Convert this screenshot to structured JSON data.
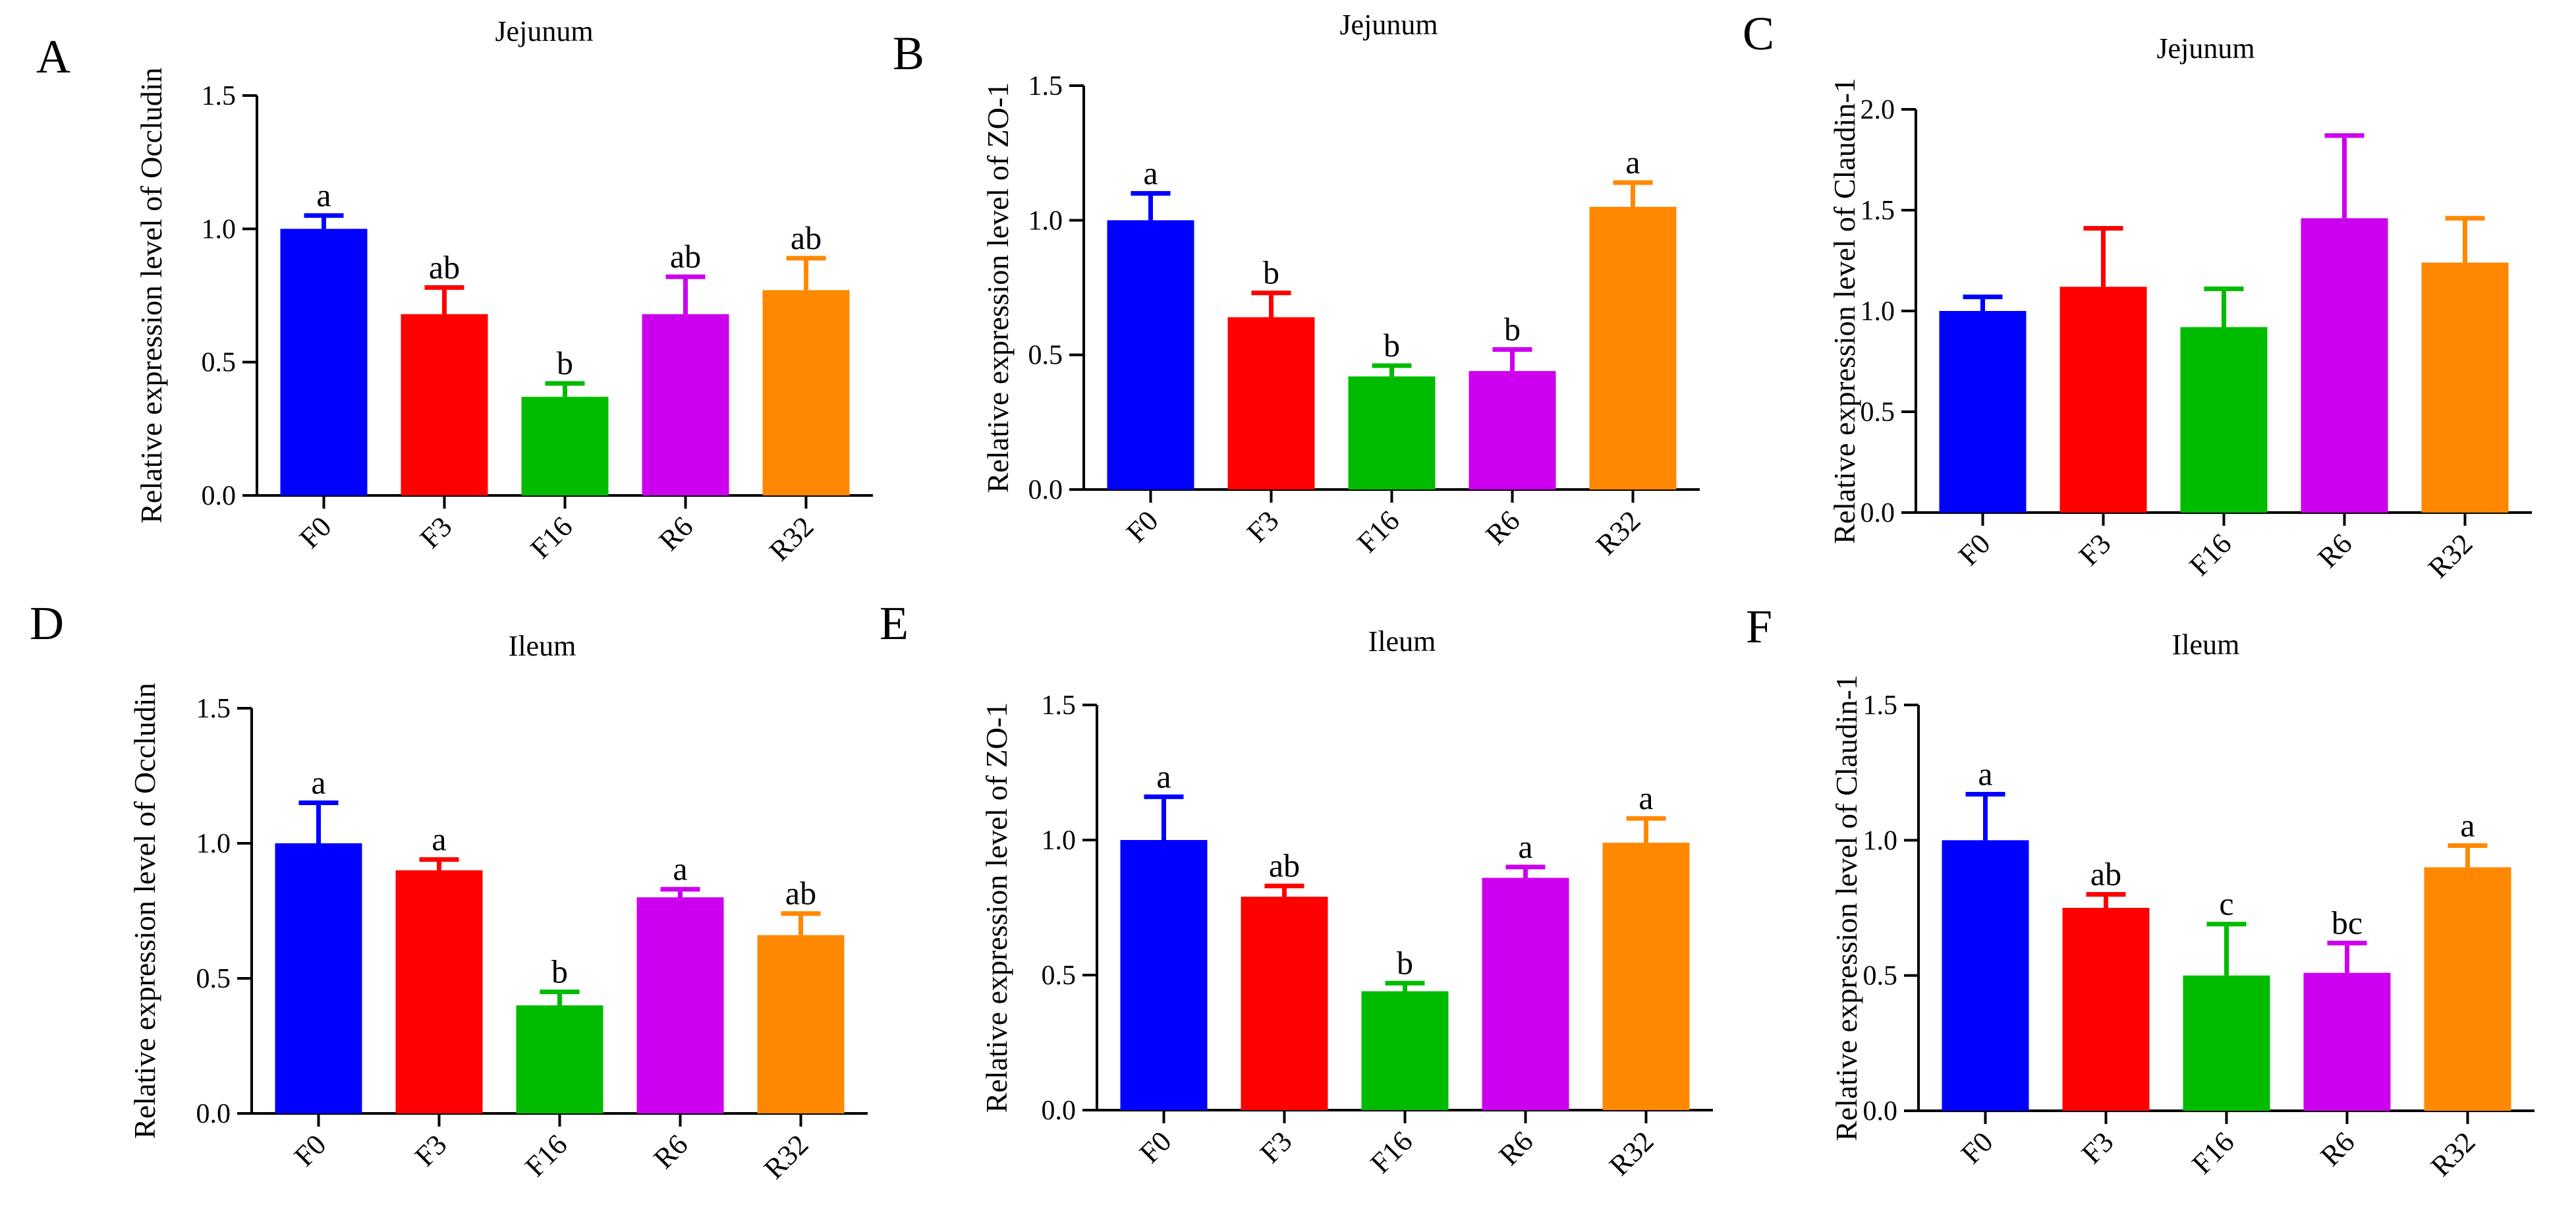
{
  "palette": [
    "#0000ff",
    "#ff0000",
    "#00bb00",
    "#cc00ee",
    "#ff8800"
  ],
  "chart_data": [
    {
      "panel": "A",
      "type": "bar",
      "title": "Jejunum",
      "xlabel": "",
      "ylabel": "Relative expression  level of Occludin",
      "categories": [
        "F0",
        "F3",
        "F16",
        "R6",
        "R32"
      ],
      "values": [
        1.0,
        0.68,
        0.37,
        0.68,
        0.77
      ],
      "errors": [
        0.05,
        0.1,
        0.05,
        0.14,
        0.12
      ],
      "significance": [
        "a",
        "ab",
        "b",
        "ab",
        "ab"
      ],
      "ylim": [
        0,
        1.5
      ],
      "yticks": [
        0.0,
        0.5,
        1.0,
        1.5
      ],
      "ytick_labels": [
        "0.0",
        "0.5",
        "1.0",
        "1.5"
      ]
    },
    {
      "panel": "B",
      "type": "bar",
      "title": "Jejunum",
      "xlabel": "",
      "ylabel": "Relative expression  level of ZO-1",
      "categories": [
        "F0",
        "F3",
        "F16",
        "R6",
        "R32"
      ],
      "values": [
        1.0,
        0.64,
        0.42,
        0.44,
        1.05
      ],
      "errors": [
        0.1,
        0.09,
        0.04,
        0.08,
        0.09
      ],
      "significance": [
        "a",
        "b",
        "b",
        "b",
        "a"
      ],
      "ylim": [
        0,
        1.5
      ],
      "yticks": [
        0.0,
        0.5,
        1.0,
        1.5
      ],
      "ytick_labels": [
        "0.0",
        "0.5",
        "1.0",
        "1.5"
      ]
    },
    {
      "panel": "C",
      "type": "bar",
      "title": "Jejunum",
      "xlabel": "",
      "ylabel": "Relative expression  level of Claudin-1",
      "categories": [
        "F0",
        "F3",
        "F16",
        "R6",
        "R32"
      ],
      "values": [
        1.0,
        1.12,
        0.92,
        1.46,
        1.24
      ],
      "errors": [
        0.07,
        0.29,
        0.19,
        0.41,
        0.22
      ],
      "significance": [
        "",
        "",
        "",
        "",
        ""
      ],
      "ylim": [
        0,
        2.0
      ],
      "yticks": [
        0.0,
        0.5,
        1.0,
        1.5,
        2.0
      ],
      "ytick_labels": [
        "0.0",
        "0.5",
        "1.0",
        "1.5",
        "2.0"
      ]
    },
    {
      "panel": "D",
      "type": "bar",
      "title": "Ileum",
      "xlabel": "",
      "ylabel": "Relative expression  level of Occludin",
      "categories": [
        "F0",
        "F3",
        "F16",
        "R6",
        "R32"
      ],
      "values": [
        1.0,
        0.9,
        0.4,
        0.8,
        0.66
      ],
      "errors": [
        0.15,
        0.04,
        0.05,
        0.03,
        0.08
      ],
      "significance": [
        "a",
        "a",
        "b",
        "a",
        "ab"
      ],
      "ylim": [
        0,
        1.5
      ],
      "yticks": [
        0.0,
        0.5,
        1.0,
        1.5
      ],
      "ytick_labels": [
        "0.0",
        "0.5",
        "1.0",
        "1.5"
      ]
    },
    {
      "panel": "E",
      "type": "bar",
      "title": "Ileum",
      "xlabel": "",
      "ylabel": "Relative expression  level of ZO-1",
      "categories": [
        "F0",
        "F3",
        "F16",
        "R6",
        "R32"
      ],
      "values": [
        1.0,
        0.79,
        0.44,
        0.86,
        0.99
      ],
      "errors": [
        0.16,
        0.04,
        0.03,
        0.04,
        0.09
      ],
      "significance": [
        "a",
        "ab",
        "b",
        "a",
        "a"
      ],
      "ylim": [
        0,
        1.5
      ],
      "yticks": [
        0.0,
        0.5,
        1.0,
        1.5
      ],
      "ytick_labels": [
        "0.0",
        "0.5",
        "1.0",
        "1.5"
      ]
    },
    {
      "panel": "F",
      "type": "bar",
      "title": "Ileum",
      "xlabel": "",
      "ylabel": "Relative expression  level of Claudin-1",
      "categories": [
        "F0",
        "F3",
        "F16",
        "R6",
        "R32"
      ],
      "values": [
        1.0,
        0.75,
        0.5,
        0.51,
        0.9
      ],
      "errors": [
        0.17,
        0.05,
        0.19,
        0.11,
        0.08
      ],
      "significance": [
        "a",
        "ab",
        "c",
        "bc",
        "a"
      ],
      "ylim": [
        0,
        1.5
      ],
      "yticks": [
        0.0,
        0.5,
        1.0,
        1.5
      ],
      "ytick_labels": [
        "0.0",
        "0.5",
        "1.0",
        "1.5"
      ]
    }
  ]
}
